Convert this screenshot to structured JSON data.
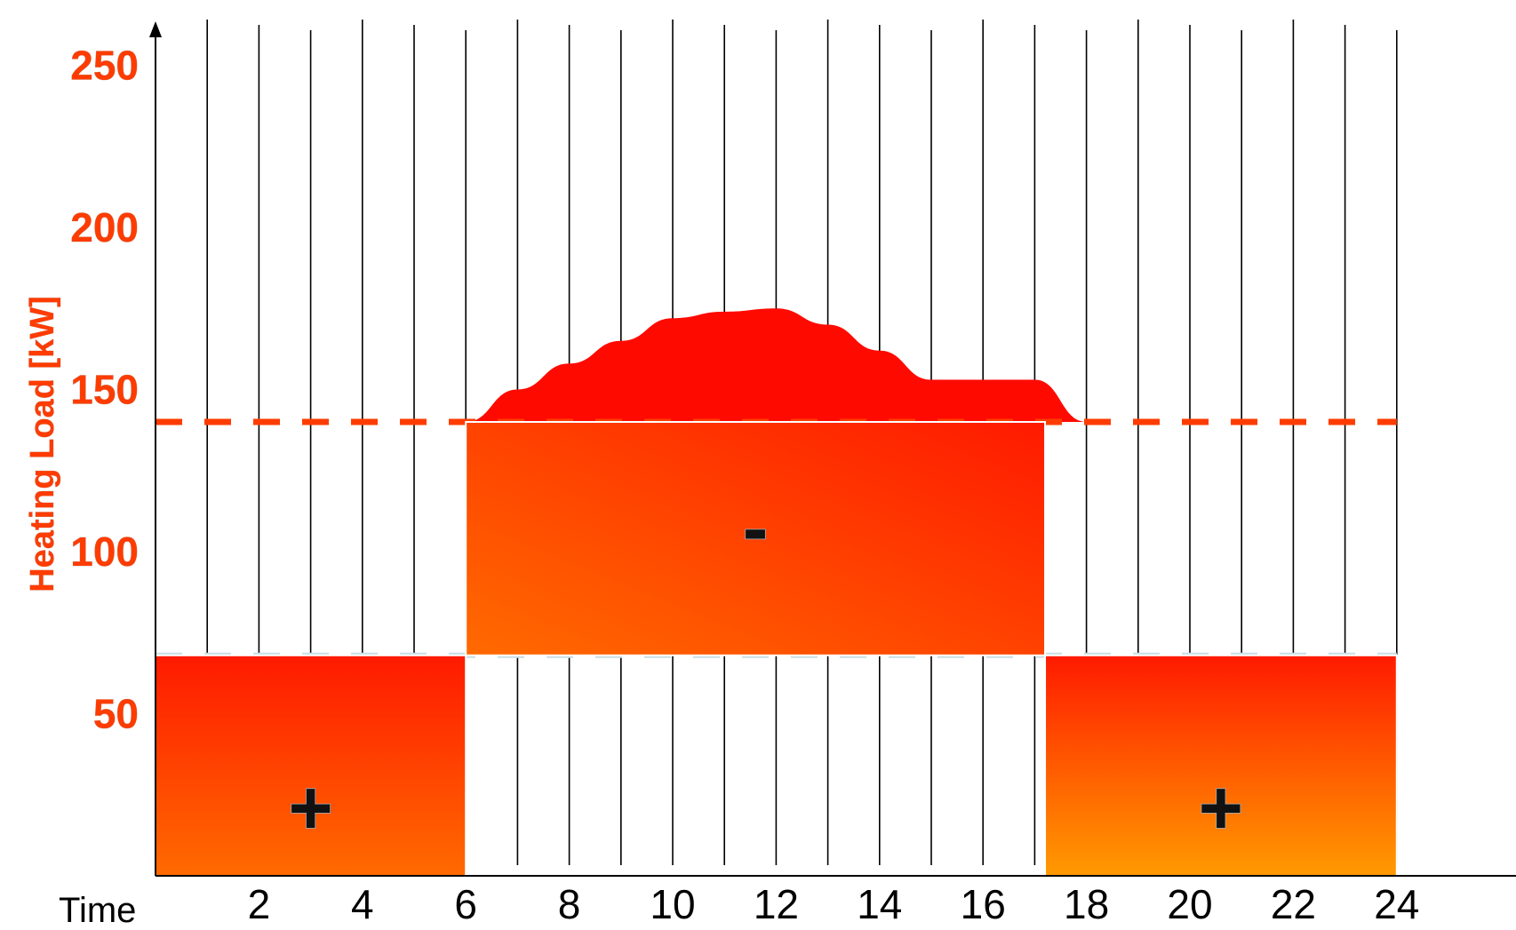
{
  "chart_data": {
    "type": "area",
    "title": "",
    "xlabel": "Time",
    "ylabel": "Heating Load  [kW]",
    "xlim": [
      0,
      24.9
    ],
    "ylim": [
      0,
      268
    ],
    "x_ticks": [
      2,
      4,
      6,
      8,
      10,
      12,
      14,
      16,
      18,
      20,
      22,
      24
    ],
    "y_ticks": [
      50,
      100,
      150,
      200,
      250
    ],
    "gridlines_x": [
      1,
      2,
      3,
      4,
      5,
      6,
      7,
      8,
      9,
      10,
      11,
      12,
      13,
      14,
      15,
      16,
      17,
      18,
      19,
      20,
      21,
      22,
      23,
      24
    ],
    "reference_lines": [
      {
        "style": "dashed",
        "color": "#ff3c00",
        "y": 140
      },
      {
        "style": "dashed",
        "color": "#c8dfe4",
        "y": 68
      }
    ],
    "load_profile": {
      "color": "#ff0a00",
      "x": [
        6,
        7,
        8,
        9,
        10,
        11,
        12,
        13,
        14,
        15,
        16,
        17,
        18
      ],
      "y": [
        140,
        150,
        158,
        165,
        172,
        174,
        175,
        170,
        162,
        153,
        153,
        153,
        140
      ]
    },
    "blocks": [
      {
        "x_start": 0,
        "x_end": 6,
        "y_start": 0,
        "y_end": 68,
        "sign": "+"
      },
      {
        "x_start": 6,
        "x_end": 17.2,
        "y_start": 68,
        "y_end": 140,
        "sign": "-"
      },
      {
        "x_start": 17.2,
        "x_end": 24,
        "y_start": 0,
        "y_end": 68,
        "sign": "+"
      }
    ],
    "colors": {
      "block_top": "#ff1a00",
      "block_bottom": "#ff6a00",
      "block3_bottom": "#ff9a00",
      "axis": "#000000"
    }
  }
}
